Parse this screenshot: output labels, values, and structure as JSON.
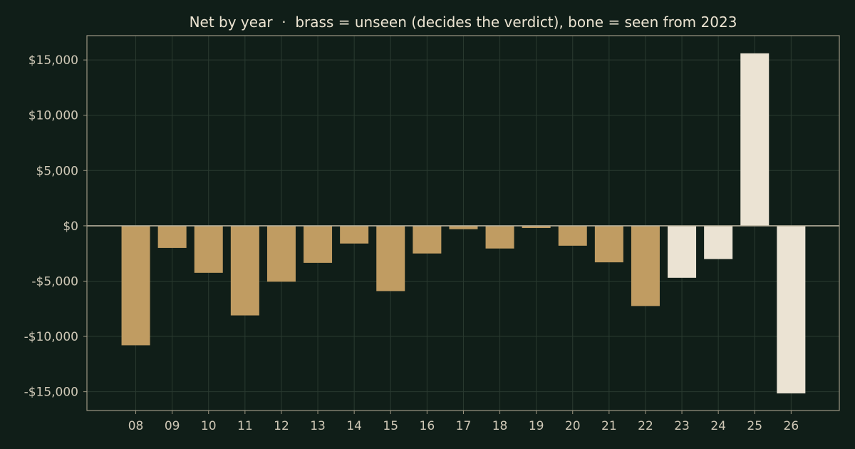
{
  "chart_data": {
    "type": "bar",
    "title": "Net by year  ·  brass = unseen (decides the verdict), bone = seen from 2023",
    "xlabel": "",
    "ylabel": "",
    "categories": [
      "08",
      "09",
      "10",
      "11",
      "12",
      "13",
      "14",
      "15",
      "16",
      "17",
      "18",
      "19",
      "20",
      "21",
      "22",
      "23",
      "24",
      "25",
      "26"
    ],
    "values": [
      -10800,
      -2000,
      -4250,
      -8100,
      -5050,
      -3350,
      -1600,
      -5900,
      -2500,
      -300,
      -2050,
      -200,
      -1800,
      -3300,
      -7250,
      -4700,
      -3000,
      15600,
      -15150
    ],
    "groups": [
      "unseen",
      "unseen",
      "unseen",
      "unseen",
      "unseen",
      "unseen",
      "unseen",
      "unseen",
      "unseen",
      "unseen",
      "unseen",
      "unseen",
      "unseen",
      "unseen",
      "unseen",
      "seen",
      "seen",
      "seen",
      "seen"
    ],
    "group_colors": {
      "unseen": "#c09c62",
      "seen": "#ebe3d3"
    },
    "ylim": [
      -16700,
      17200
    ],
    "y_ticks": [
      15000,
      10000,
      5000,
      0,
      -5000,
      -10000,
      -15000
    ],
    "y_tick_labels": [
      "$15,000",
      "$10,000",
      "$5,000",
      "$0",
      "-$5,000",
      "-$10,000",
      "-$15,000"
    ],
    "grid": true,
    "legend": "none",
    "colors": {
      "background": "#101e18",
      "axes_frame": "#9d9783",
      "grid": "#2a3a30",
      "zero_line": "#b9b29e",
      "text": "#ece4d2",
      "tick_text": "#cfc8b6"
    }
  }
}
